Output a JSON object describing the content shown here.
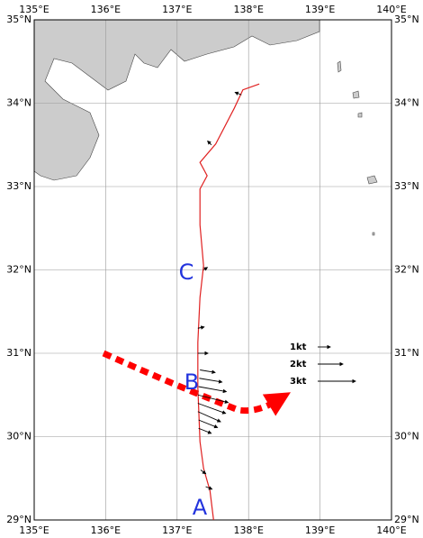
{
  "map": {
    "xlim": [
      135,
      140
    ],
    "ylim": [
      29,
      35
    ],
    "xticks": [
      {
        "value": 135,
        "label": "135°E"
      },
      {
        "value": 136,
        "label": "136°E"
      },
      {
        "value": 137,
        "label": "137°E"
      },
      {
        "value": 138,
        "label": "138°E"
      },
      {
        "value": 139,
        "label": "139°E"
      },
      {
        "value": 140,
        "label": "140°E"
      }
    ],
    "yticks": [
      {
        "value": 29,
        "label": "29°N"
      },
      {
        "value": 30,
        "label": "30°N"
      },
      {
        "value": 31,
        "label": "31°N"
      },
      {
        "value": 32,
        "label": "32°N"
      },
      {
        "value": 33,
        "label": "33°N"
      },
      {
        "value": 34,
        "label": "34°N"
      },
      {
        "value": 35,
        "label": "35°N"
      }
    ],
    "track": {
      "color": "#e02020",
      "lon": [
        137.51,
        137.46,
        137.37,
        137.32,
        137.29,
        137.29,
        137.32,
        137.37,
        137.32,
        137.32,
        137.42,
        137.32,
        137.54,
        137.8,
        137.92,
        138.15
      ],
      "lat": [
        29.0,
        29.35,
        29.62,
        29.94,
        30.59,
        31.13,
        31.67,
        32.05,
        32.54,
        32.97,
        33.13,
        33.29,
        33.51,
        33.94,
        34.16,
        34.23
      ]
    },
    "currents": {
      "lon": [
        137.33,
        137.3,
        137.3,
        137.29,
        137.29,
        137.29,
        137.3,
        137.31,
        137.32,
        137.29,
        137.29,
        137.4,
        137.37,
        137.48,
        137.9
      ],
      "lat": [
        29.6,
        30.1,
        30.2,
        30.3,
        30.4,
        30.5,
        30.6,
        30.7,
        30.8,
        31.0,
        31.3,
        29.4,
        32.0,
        33.5,
        34.1
      ],
      "u": [
        0.4,
        1.0,
        1.5,
        1.8,
        2.2,
        2.4,
        2.2,
        1.8,
        1.2,
        0.8,
        0.5,
        0.5,
        0.3,
        -0.3,
        -0.5
      ],
      "v": [
        -0.3,
        -0.4,
        -0.6,
        -0.8,
        -0.8,
        -0.6,
        -0.4,
        -0.3,
        -0.2,
        0.0,
        0.1,
        -0.2,
        0.2,
        0.3,
        0.2
      ]
    },
    "legend": [
      {
        "value": 1,
        "label": "1kt"
      },
      {
        "value": 2,
        "label": "2kt"
      },
      {
        "value": 3,
        "label": "3kt"
      }
    ],
    "points": [
      "A",
      "B",
      "C"
    ]
  }
}
